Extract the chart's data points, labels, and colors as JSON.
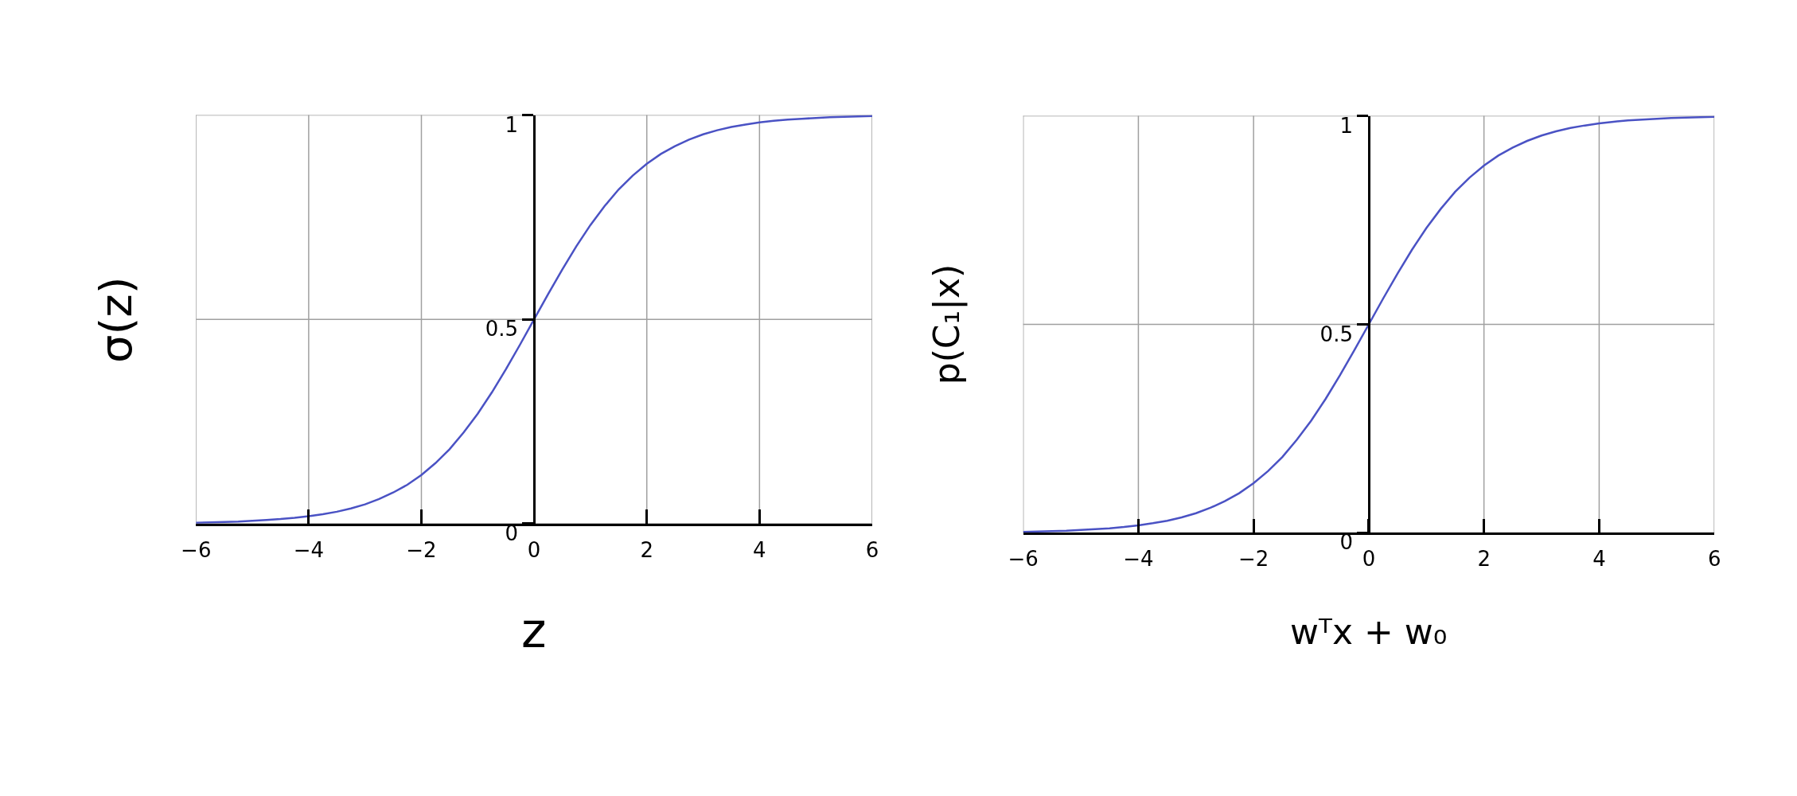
{
  "chart_data": [
    {
      "type": "line",
      "xlabel": "z",
      "ylabel": "σ(z)",
      "x": [
        -6,
        -5.75,
        -5.5,
        -5.25,
        -5,
        -4.75,
        -4.5,
        -4.25,
        -4,
        -3.75,
        -3.5,
        -3.25,
        -3,
        -2.75,
        -2.5,
        -2.25,
        -2,
        -1.75,
        -1.5,
        -1.25,
        -1,
        -0.75,
        -0.5,
        -0.25,
        0,
        0.25,
        0.5,
        0.75,
        1,
        1.25,
        1.5,
        1.75,
        2,
        2.25,
        2.5,
        2.75,
        3,
        3.25,
        3.5,
        3.75,
        4,
        4.25,
        4.5,
        4.75,
        5,
        5.25,
        5.5,
        5.75,
        6
      ],
      "series": [
        {
          "color": "#4a52c4",
          "values": [
            0.002,
            0.003,
            0.004,
            0.005,
            0.007,
            0.009,
            0.011,
            0.014,
            0.018,
            0.023,
            0.029,
            0.037,
            0.047,
            0.06,
            0.076,
            0.095,
            0.119,
            0.148,
            0.182,
            0.223,
            0.269,
            0.321,
            0.378,
            0.438,
            0.5,
            0.562,
            0.622,
            0.679,
            0.731,
            0.777,
            0.818,
            0.852,
            0.881,
            0.905,
            0.924,
            0.94,
            0.953,
            0.963,
            0.971,
            0.977,
            0.982,
            0.986,
            0.989,
            0.991,
            0.993,
            0.995,
            0.996,
            0.997,
            0.998
          ]
        }
      ],
      "xlim": [
        -6,
        6
      ],
      "ylim": [
        0,
        1
      ],
      "xticks": [
        {
          "value": -6,
          "label": "−6"
        },
        {
          "value": -4,
          "label": "−4"
        },
        {
          "value": -2,
          "label": "−2"
        },
        0,
        2,
        4,
        6
      ],
      "yticks": [
        0,
        0.5,
        1
      ],
      "grid": true,
      "marker": "none",
      "line_style": "solid"
    },
    {
      "type": "line",
      "xlabel": "wᵀx + w₀",
      "ylabel": "p(C₁|x)",
      "x": [
        -6,
        -5.75,
        -5.5,
        -5.25,
        -5,
        -4.75,
        -4.5,
        -4.25,
        -4,
        -3.75,
        -3.5,
        -3.25,
        -3,
        -2.75,
        -2.5,
        -2.25,
        -2,
        -1.75,
        -1.5,
        -1.25,
        -1,
        -0.75,
        -0.5,
        -0.25,
        0,
        0.25,
        0.5,
        0.75,
        1,
        1.25,
        1.5,
        1.75,
        2,
        2.25,
        2.5,
        2.75,
        3,
        3.25,
        3.5,
        3.75,
        4,
        4.25,
        4.5,
        4.75,
        5,
        5.25,
        5.5,
        5.75,
        6
      ],
      "series": [
        {
          "color": "#4a52c4",
          "values": [
            0.002,
            0.003,
            0.004,
            0.005,
            0.007,
            0.009,
            0.011,
            0.014,
            0.018,
            0.023,
            0.029,
            0.037,
            0.047,
            0.06,
            0.076,
            0.095,
            0.119,
            0.148,
            0.182,
            0.223,
            0.269,
            0.321,
            0.378,
            0.438,
            0.5,
            0.562,
            0.622,
            0.679,
            0.731,
            0.777,
            0.818,
            0.852,
            0.881,
            0.905,
            0.924,
            0.94,
            0.953,
            0.963,
            0.971,
            0.977,
            0.982,
            0.986,
            0.989,
            0.991,
            0.993,
            0.995,
            0.996,
            0.997,
            0.998
          ]
        }
      ],
      "xlim": [
        -6,
        6
      ],
      "ylim": [
        0,
        1
      ],
      "xticks": [
        {
          "value": -6,
          "label": "−6"
        },
        {
          "value": -4,
          "label": "−4"
        },
        {
          "value": -2,
          "label": "−2"
        },
        0,
        2,
        4,
        6
      ],
      "yticks": [
        0,
        0.5,
        1
      ],
      "grid": true,
      "marker": "none",
      "line_style": "solid"
    }
  ]
}
